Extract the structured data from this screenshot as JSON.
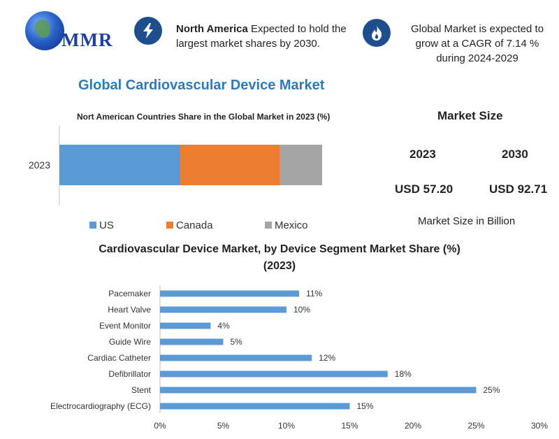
{
  "header": {
    "logo_text": "MMR",
    "left_bold": "North America",
    "left_text": " Expected to hold the largest market shares by 2030.",
    "right_text": "Global Market is expected to grow at a CAGR of 7.14 % during 2024-2029"
  },
  "main_title": "Global Cardiovascular  Device Market",
  "market_size": {
    "title": "Market Size",
    "year_a": "2023",
    "year_b": "2030",
    "value_a": "USD 57.20",
    "value_b": "USD 92.71",
    "note": "Market Size in Billion"
  },
  "chart_data": [
    {
      "type": "bar",
      "orientation": "horizontal-stacked",
      "title": "Nort American Countries Share in the Global Market in 2023  (%)",
      "categories": [
        "2023"
      ],
      "series": [
        {
          "name": "US",
          "values": [
            46
          ]
        },
        {
          "name": "Canada",
          "values": [
            38
          ]
        },
        {
          "name": "Mexico",
          "values": [
            16
          ]
        }
      ],
      "colors": [
        "#5b9bd5",
        "#ed7d31",
        "#a5a5a5"
      ],
      "legend": "bottom"
    },
    {
      "type": "bar",
      "orientation": "horizontal",
      "title": "Cardiovascular Device Market, by Device Segment Market Share (%)",
      "subtitle": "(2023)",
      "categories": [
        "Pacemaker",
        "Heart Valve",
        "Event Monitor",
        "Guide Wire",
        "Cardiac Catheter",
        "Defibrillator",
        "Stent",
        "Electrocardiography (ECG)"
      ],
      "values": [
        11,
        10,
        4,
        5,
        12,
        18,
        25,
        15
      ],
      "data_labels": [
        "11%",
        "10%",
        "4%",
        "5%",
        "12%",
        "18%",
        "25%",
        "15%"
      ],
      "xticks": [
        "0%",
        "5%",
        "10%",
        "15%",
        "20%",
        "25%",
        "30%"
      ],
      "xlim": [
        0,
        30
      ],
      "grid": false,
      "color": "#5b9bd5"
    }
  ]
}
